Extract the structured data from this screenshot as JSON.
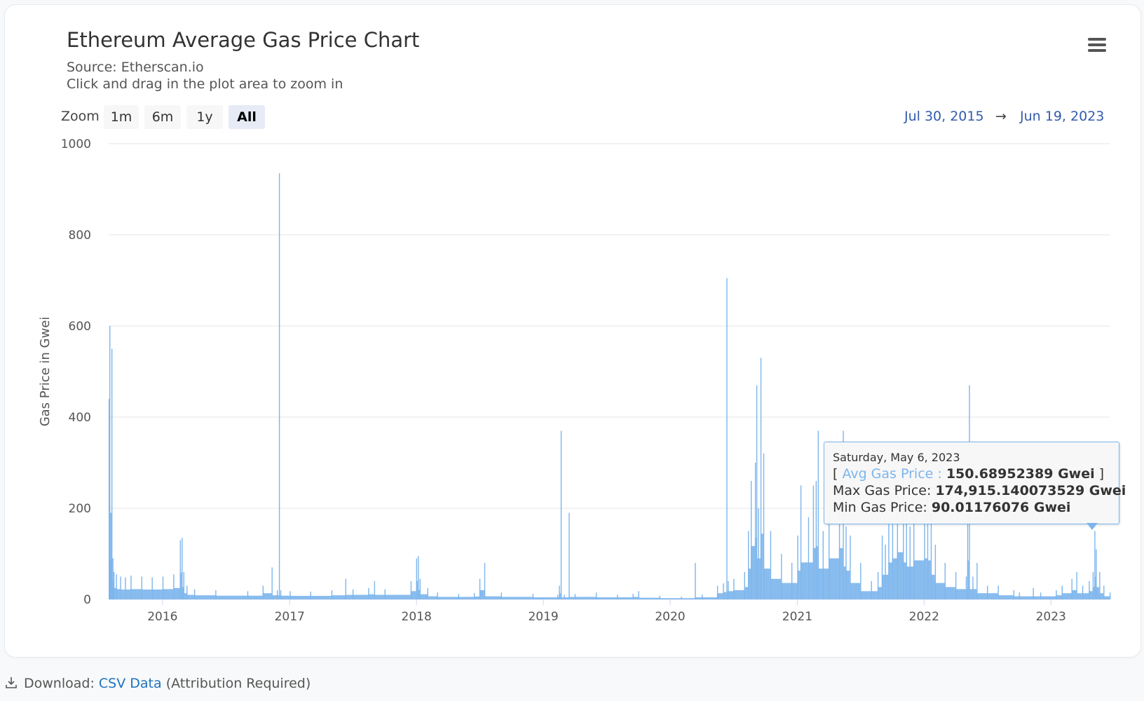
{
  "chart_data": {
    "type": "bar",
    "title": "Ethereum Average Gas Price Chart",
    "subtitle_lines": [
      "Source: Etherscan.io",
      "Click and drag in the plot area to zoom in"
    ],
    "ylabel": "Gas Price in Gwei",
    "ylim": [
      0,
      1000
    ],
    "yticks": [
      "0",
      "200",
      "400",
      "600",
      "800",
      "1000"
    ],
    "xticks": [
      "2016",
      "2017",
      "2018",
      "2019",
      "2020",
      "2021",
      "2022",
      "2023"
    ],
    "xlim": [
      "2015-07-30",
      "2023-06-19"
    ],
    "grid": true,
    "color": "#7cb5ec",
    "series": [
      {
        "x": [
          "2015-07-30",
          "2015-08-01",
          "2015-08-04",
          "2015-08-07",
          "2015-08-10",
          "2015-08-13",
          "2015-08-20",
          "2015-09-01",
          "2015-09-15",
          "2015-10-01",
          "2015-11-01",
          "2015-12-01",
          "2016-01-01",
          "2016-02-01",
          "2016-02-20",
          "2016-02-25",
          "2016-03-01",
          "2016-03-10",
          "2016-04-01",
          "2016-06-01",
          "2016-09-01",
          "2016-10-15",
          "2016-11-10",
          "2016-11-25",
          "2016-12-01",
          "2016-12-05",
          "2017-01-01",
          "2017-03-01",
          "2017-05-01",
          "2017-06-10",
          "2017-07-01",
          "2017-08-15",
          "2017-09-01",
          "2017-10-01",
          "2017-12-15",
          "2017-12-31",
          "2018-01-05",
          "2018-01-10",
          "2018-02-01",
          "2018-03-01",
          "2018-05-01",
          "2018-06-15",
          "2018-07-01",
          "2018-07-15",
          "2018-09-01",
          "2018-12-01",
          "2019-02-10",
          "2019-02-15",
          "2019-02-20",
          "2019-03-01",
          "2019-03-15",
          "2019-04-01",
          "2019-06-01",
          "2019-08-01",
          "2019-09-15",
          "2019-10-01",
          "2019-12-01",
          "2020-02-01",
          "2020-03-12",
          "2020-04-01",
          "2020-05-15",
          "2020-06-01",
          "2020-06-11",
          "2020-06-15",
          "2020-07-01",
          "2020-08-01",
          "2020-08-12",
          "2020-08-20",
          "2020-09-01",
          "2020-09-05",
          "2020-09-10",
          "2020-09-17",
          "2020-09-25",
          "2020-10-15",
          "2020-11-15",
          "2020-12-15",
          "2021-01-01",
          "2021-01-10",
          "2021-02-01",
          "2021-02-15",
          "2021-02-23",
          "2021-03-01",
          "2021-03-15",
          "2021-04-01",
          "2021-05-01",
          "2021-05-12",
          "2021-05-20",
          "2021-06-01",
          "2021-07-01",
          "2021-08-01",
          "2021-08-20",
          "2021-09-01",
          "2021-09-10",
          "2021-09-20",
          "2021-10-01",
          "2021-10-15",
          "2021-11-01",
          "2021-11-10",
          "2021-11-20",
          "2021-12-01",
          "2022-01-01",
          "2022-01-10",
          "2022-01-20",
          "2022-02-01",
          "2022-03-01",
          "2022-04-01",
          "2022-05-01",
          "2022-05-05",
          "2022-05-10",
          "2022-05-20",
          "2022-06-01",
          "2022-07-01",
          "2022-08-01",
          "2022-09-15",
          "2022-10-01",
          "2022-11-10",
          "2022-12-01",
          "2023-01-15",
          "2023-02-01",
          "2023-03-01",
          "2023-03-15",
          "2023-04-01",
          "2023-04-20",
          "2023-05-01",
          "2023-05-06",
          "2023-05-10",
          "2023-05-20",
          "2023-06-01",
          "2023-06-19"
        ],
        "y": [
          440,
          600,
          190,
          550,
          90,
          60,
          55,
          50,
          48,
          52,
          50,
          48,
          50,
          55,
          130,
          135,
          60,
          30,
          22,
          20,
          18,
          30,
          70,
          20,
          935,
          20,
          18,
          17,
          20,
          45,
          22,
          25,
          40,
          22,
          40,
          90,
          95,
          45,
          25,
          15,
          12,
          14,
          45,
          80,
          15,
          12,
          10,
          30,
          370,
          10,
          190,
          12,
          15,
          10,
          12,
          18,
          8,
          6,
          80,
          10,
          30,
          35,
          705,
          40,
          45,
          60,
          150,
          260,
          300,
          470,
          200,
          530,
          320,
          150,
          100,
          80,
          140,
          250,
          180,
          250,
          260,
          370,
          150,
          200,
          250,
          370,
          160,
          140,
          80,
          40,
          60,
          140,
          120,
          180,
          200,
          230,
          300,
          180,
          160,
          190,
          200,
          230,
          190,
          120,
          80,
          60,
          50,
          190,
          470,
          50,
          80,
          30,
          30,
          20,
          15,
          25,
          15,
          20,
          30,
          45,
          60,
          30,
          40,
          60,
          150,
          110,
          60,
          30,
          15
        ]
      }
    ]
  },
  "controls": {
    "zoom_label": "Zoom",
    "zoom_buttons": [
      "1m",
      "6m",
      "1y",
      "All"
    ],
    "zoom_active": "All",
    "range_from": "Jul 30, 2015",
    "range_arrow": "→",
    "range_to": "Jun 19, 2023",
    "menu_icon": "hamburger-menu-icon"
  },
  "tooltip": {
    "date": "Saturday, May 6, 2023",
    "avg_open": "[ ",
    "avg_label": "Avg Gas Price : ",
    "avg_value": "150.68952389 Gwei",
    "avg_close": " ]",
    "max_label": "Max Gas Price: ",
    "max_value": "174,915.140073529 Gwei",
    "min_label": "Min Gas Price: ",
    "min_value": "90.01176076 Gwei"
  },
  "footer": {
    "icon": "download-icon",
    "prefix": "Download:",
    "link": "CSV Data",
    "suffix": "(Attribution Required)"
  }
}
